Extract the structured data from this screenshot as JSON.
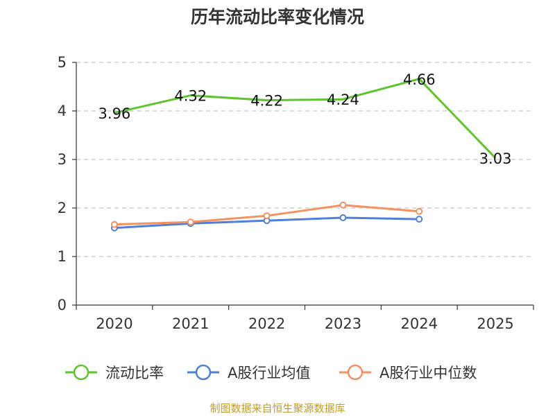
{
  "chart_data": {
    "type": "line",
    "title": "历年流动比率变化情况",
    "categories": [
      "2020",
      "2021",
      "2022",
      "2023",
      "2024",
      "2025"
    ],
    "ylim": [
      0,
      5
    ],
    "yticks": [
      0,
      1,
      2,
      3,
      4,
      5
    ],
    "grid": true,
    "legend_position": "bottom",
    "series": [
      {
        "name": "流动比率",
        "color": "#5cc52e",
        "values": [
          3.96,
          4.32,
          4.22,
          4.24,
          4.66,
          3.03
        ],
        "labels": [
          "3.96",
          "4.32",
          "4.22",
          "4.24",
          "4.66",
          "3.03"
        ]
      },
      {
        "name": "A股行业均值",
        "color": "#4f7fd8",
        "values": [
          1.59,
          1.68,
          1.74,
          1.8,
          1.77,
          null
        ]
      },
      {
        "name": "A股行业中位数",
        "color": "#f4915e",
        "values": [
          1.66,
          1.71,
          1.84,
          2.06,
          1.93,
          null
        ]
      }
    ]
  },
  "source_text": "制图数据来自恒生聚源数据库"
}
